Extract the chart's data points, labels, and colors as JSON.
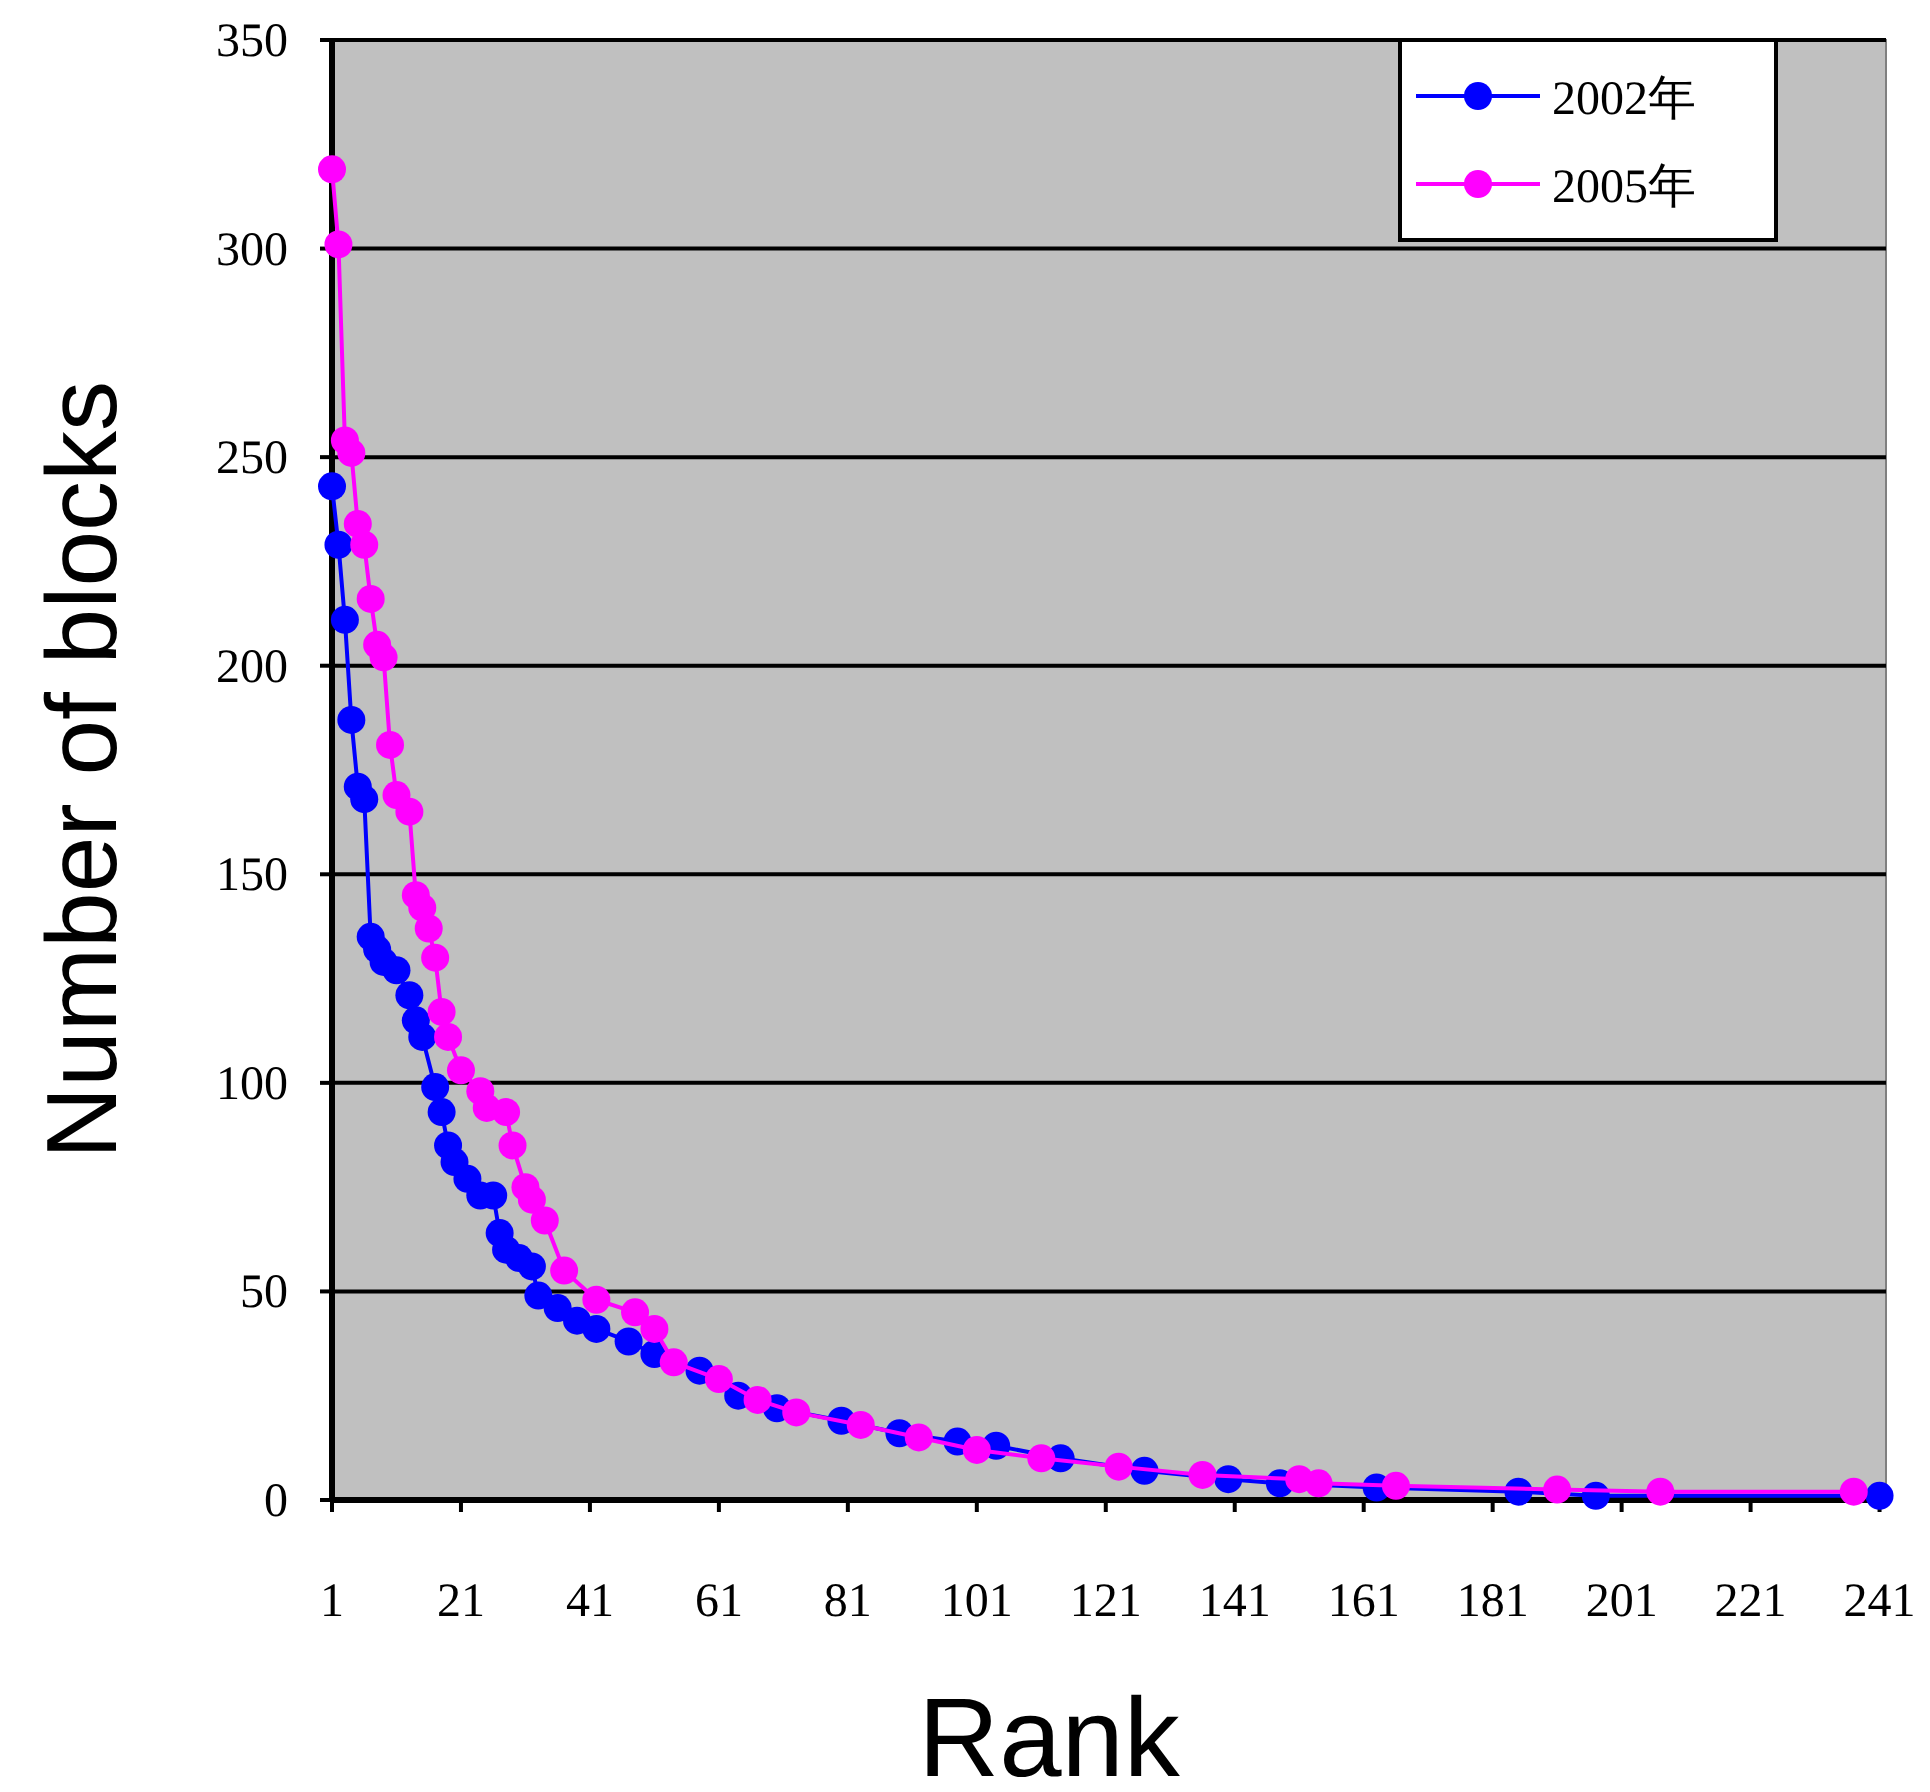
{
  "chart_data": {
    "type": "line",
    "xlabel": "Rank",
    "ylabel": "Number of blocks",
    "xlim": [
      1,
      242
    ],
    "xticks": [
      1,
      21,
      41,
      61,
      81,
      101,
      121,
      141,
      161,
      181,
      201,
      221,
      241
    ],
    "ylim": [
      0,
      350
    ],
    "yticks": [
      0,
      50,
      100,
      150,
      200,
      250,
      300,
      350
    ],
    "grid": "y",
    "legend": "top right",
    "marker": "circle",
    "line_style": "solid",
    "series": [
      {
        "name": "2002年",
        "color": "#0000ff",
        "x": [
          1,
          2,
          3,
          4,
          5,
          6,
          7,
          8,
          9,
          11,
          13,
          14,
          15,
          17,
          18,
          19,
          20,
          22,
          24,
          26,
          27,
          28,
          30,
          32,
          33,
          36,
          39,
          42,
          47,
          51,
          58,
          64,
          70,
          80,
          89,
          98,
          104,
          114,
          127,
          140,
          148,
          163,
          185,
          197,
          241
        ],
        "values": [
          243,
          229,
          211,
          187,
          171,
          168,
          135,
          132,
          129,
          127,
          121,
          115,
          111,
          99,
          93,
          85,
          81,
          77,
          73,
          73,
          64,
          60,
          58,
          56,
          49,
          46,
          43,
          41,
          38,
          35,
          31,
          25,
          22,
          19,
          16,
          14,
          13,
          10,
          7,
          5,
          4,
          3,
          2,
          1,
          1
        ]
      },
      {
        "name": "2005年",
        "color": "#ff00ff",
        "x": [
          1,
          2,
          3,
          4,
          5,
          6,
          7,
          8,
          9,
          10,
          11,
          13,
          14,
          15,
          16,
          17,
          18,
          19,
          21,
          24,
          25,
          28,
          29,
          31,
          32,
          34,
          37,
          42,
          48,
          51,
          54,
          61,
          67,
          73,
          83,
          92,
          101,
          111,
          123,
          136,
          151,
          154,
          166,
          191,
          207,
          237
        ],
        "values": [
          319,
          301,
          254,
          251,
          234,
          229,
          216,
          205,
          202,
          181,
          169,
          165,
          145,
          142,
          137,
          130,
          117,
          111,
          103,
          98,
          94,
          93,
          85,
          75,
          72,
          67,
          55,
          48,
          45,
          41,
          33,
          29,
          24,
          21,
          18,
          15,
          12,
          10,
          8,
          6,
          5,
          4,
          3.4,
          2.5,
          2,
          2
        ]
      }
    ]
  }
}
